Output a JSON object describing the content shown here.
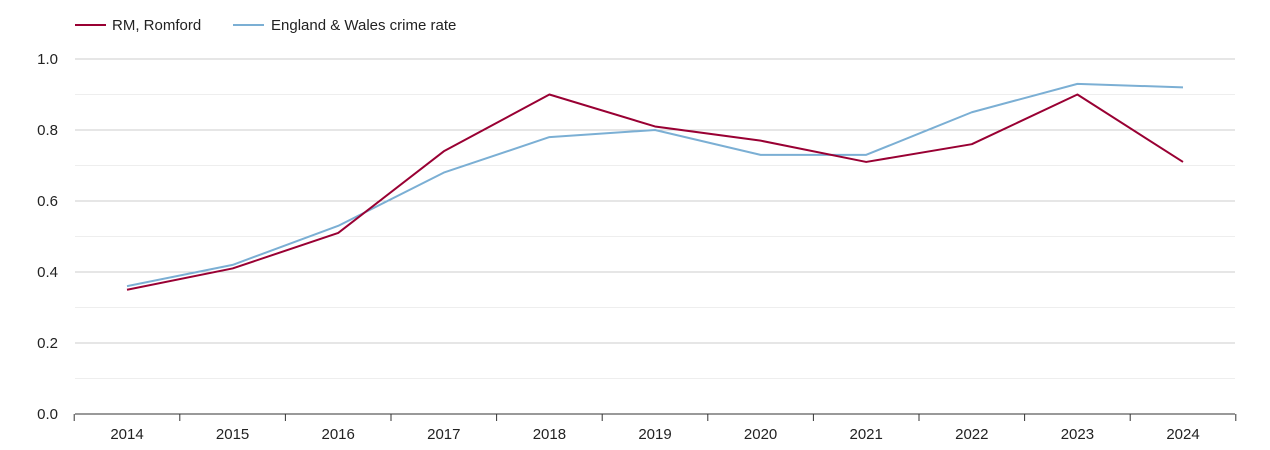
{
  "chart_data": {
    "type": "line",
    "x": [
      "2014",
      "2015",
      "2016",
      "2017",
      "2018",
      "2019",
      "2020",
      "2021",
      "2022",
      "2023",
      "2024"
    ],
    "series": [
      {
        "name": "RM, Romford",
        "color": "#990033",
        "values": [
          0.35,
          0.41,
          0.51,
          0.74,
          0.9,
          0.81,
          0.77,
          0.71,
          0.76,
          0.9,
          0.71
        ]
      },
      {
        "name": "England & Wales crime rate",
        "color": "#7bafd4",
        "values": [
          0.36,
          0.42,
          0.53,
          0.68,
          0.78,
          0.8,
          0.73,
          0.73,
          0.85,
          0.93,
          0.92
        ]
      }
    ],
    "yticks": [
      "0.0",
      "0.2",
      "0.4",
      "0.6",
      "0.8",
      "1.0"
    ],
    "ylim": [
      0,
      1.0
    ],
    "grid": true,
    "legend_position": "top-left"
  }
}
